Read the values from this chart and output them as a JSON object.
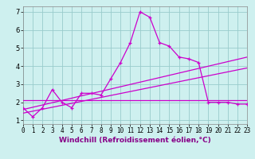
{
  "xlabel": "Windchill (Refroidissement éolien,°C)",
  "background_color": "#cef0ef",
  "line_color": "#cc00cc",
  "grid_color": "#99cccc",
  "xlim": [
    0,
    23
  ],
  "ylim": [
    0.8,
    7.3
  ],
  "xticks": [
    0,
    1,
    2,
    3,
    4,
    5,
    6,
    7,
    8,
    9,
    10,
    11,
    12,
    13,
    14,
    15,
    16,
    17,
    18,
    19,
    20,
    21,
    22,
    23
  ],
  "yticks": [
    1,
    2,
    3,
    4,
    5,
    6,
    7
  ],
  "main_x": [
    0,
    1,
    2,
    3,
    4,
    5,
    6,
    7,
    8,
    9,
    10,
    11,
    12,
    13,
    14,
    15,
    16,
    17,
    18,
    19,
    20,
    21,
    22,
    23
  ],
  "main_y": [
    1.7,
    1.2,
    1.7,
    2.7,
    2.0,
    1.7,
    2.5,
    2.5,
    2.4,
    3.3,
    4.2,
    5.3,
    7.0,
    6.7,
    5.3,
    5.1,
    4.5,
    4.4,
    4.2,
    2.0,
    2.0,
    2.0,
    1.9,
    1.9
  ],
  "trend1_x": [
    0,
    23
  ],
  "trend1_y": [
    1.6,
    4.5
  ],
  "trend2_x": [
    0,
    23
  ],
  "trend2_y": [
    1.4,
    3.9
  ],
  "trend3_x": [
    0,
    23
  ],
  "trend3_y": [
    2.1,
    2.1
  ],
  "xlabel_fontsize": 6.5,
  "tick_fontsize": 5.5
}
